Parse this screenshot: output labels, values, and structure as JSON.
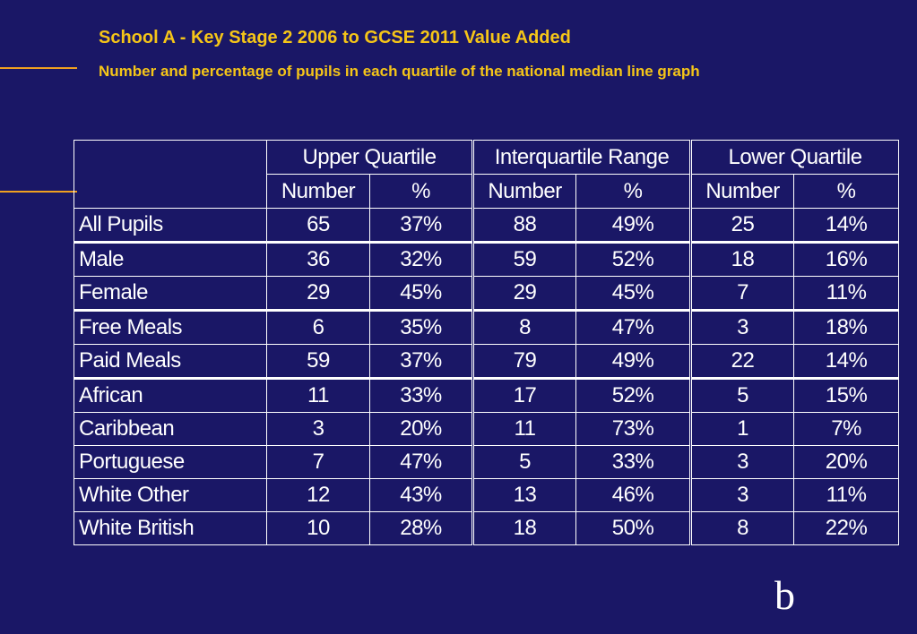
{
  "title": "School A - Key Stage 2 2006 to GCSE 2011 Value Added",
  "subtitle": "Number and percentage of pupils in each quartile of the national median line  graph",
  "colors": {
    "background": "#1a1766",
    "title": "#f5c518",
    "rules": "#f0a020",
    "table_text": "#ffffff"
  },
  "table": {
    "groups": [
      "Upper Quartile",
      "Interquartile Range",
      "Lower Quartile"
    ],
    "subheaders": [
      "Number",
      "%",
      "Number",
      "%",
      "Number",
      "%"
    ],
    "rows": [
      {
        "label": "All Pupils",
        "cells": [
          "65",
          "37%",
          "88",
          "49%",
          "25",
          "14%"
        ]
      },
      {
        "label": "Male",
        "cells": [
          "36",
          "32%",
          "59",
          "52%",
          "18",
          "16%"
        ]
      },
      {
        "label": "Female",
        "cells": [
          "29",
          "45%",
          "29",
          "45%",
          "7",
          "11%"
        ]
      },
      {
        "label": "Free Meals",
        "cells": [
          "6",
          "35%",
          "8",
          "47%",
          "3",
          "18%"
        ]
      },
      {
        "label": "Paid Meals",
        "cells": [
          "59",
          "37%",
          "79",
          "49%",
          "22",
          "14%"
        ]
      },
      {
        "label": "African",
        "cells": [
          "11",
          "33%",
          "17",
          "52%",
          "5",
          "15%"
        ]
      },
      {
        "label": "Caribbean",
        "cells": [
          "3",
          "20%",
          "11",
          "73%",
          "1",
          "7%"
        ]
      },
      {
        "label": "Portuguese",
        "cells": [
          "7",
          "47%",
          "5",
          "33%",
          "3",
          "20%"
        ]
      },
      {
        "label": "White Other",
        "cells": [
          "12",
          "43%",
          "13",
          "46%",
          "3",
          "11%"
        ]
      },
      {
        "label": "White British",
        "cells": [
          "10",
          "28%",
          "18",
          "50%",
          "8",
          "22%"
        ]
      }
    ]
  },
  "corner_letter": "b"
}
